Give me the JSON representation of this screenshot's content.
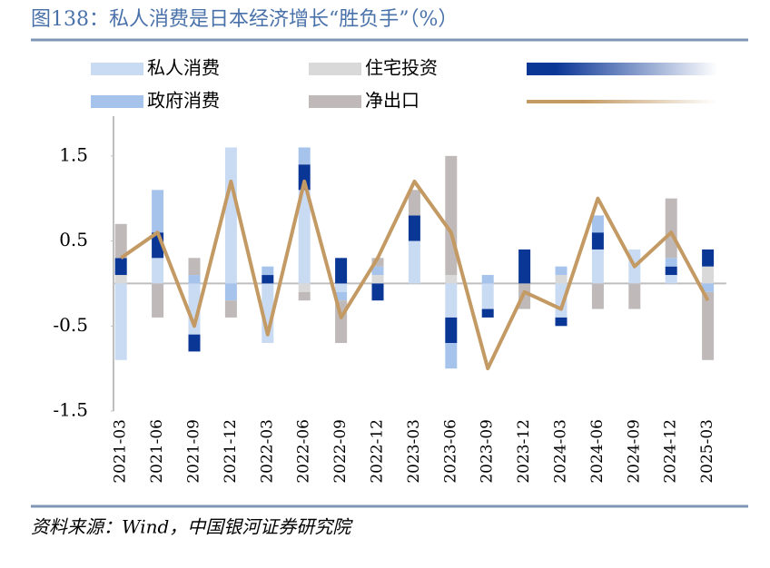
{
  "chart_data": {
    "type": "bar",
    "title": "图138：私人消费是日本经济增长“胜负手”（%）",
    "source": "资料来源：Wind，中国银河证券研究院",
    "categories": [
      "2021-03",
      "2021-06",
      "2021-09",
      "2021-12",
      "2022-03",
      "2022-06",
      "2022-09",
      "2022-12",
      "2023-03",
      "2023-06",
      "2023-09",
      "2023-12",
      "2024-03",
      "2024-06",
      "2024-09",
      "2024-12",
      "2025-03"
    ],
    "series": [
      {
        "name": "私人消费",
        "color": "#c9daf3",
        "values": [
          -0.9,
          0.3,
          -0.6,
          1.6,
          -0.7,
          1.1,
          -0.1,
          0,
          0.5,
          -0.4,
          -0.3,
          0,
          -0.4,
          0.4,
          0.4,
          0.1,
          0
        ]
      },
      {
        "name": "住宅投资",
        "color": "#d9d9d9",
        "values": [
          0.1,
          0,
          0,
          0,
          0,
          -0.1,
          0,
          0.1,
          0,
          0.1,
          0,
          0,
          0.1,
          0,
          0,
          0,
          0.2
        ]
      },
      {
        "color": "#0a3696",
        "values": [
          0.2,
          0.3,
          -0.2,
          0,
          0.1,
          0.3,
          0.3,
          -0.2,
          0.3,
          -0.3,
          -0.1,
          0.4,
          -0.1,
          0.2,
          0,
          0.1,
          0.2
        ]
      },
      {
        "name": "政府消费",
        "color": "#a6c3ec",
        "values": [
          0,
          0.5,
          0.1,
          -0.2,
          0.1,
          0.2,
          -0.1,
          0.1,
          0,
          -0.3,
          0.1,
          0,
          0.1,
          0.2,
          0,
          0.1,
          -0.1
        ]
      },
      {
        "name": "净出口",
        "color": "#bfb9b9",
        "values": [
          0.4,
          -0.4,
          0.2,
          -0.2,
          0,
          -0.1,
          -0.5,
          0.1,
          0.3,
          1.4,
          0,
          -0.3,
          0,
          -0.3,
          -0.3,
          0.7,
          -0.8
        ]
      },
      {
        "type": "line",
        "color": "#c49a64",
        "values": [
          0.3,
          0.6,
          -0.5,
          1.2,
          -0.6,
          1.2,
          -0.4,
          0.3,
          1.2,
          0.6,
          -1.0,
          -0.1,
          -0.3,
          1.0,
          0.2,
          0.6,
          -0.2
        ]
      }
    ],
    "ylim": [
      -1.5,
      2.0
    ],
    "yticks": [
      1.5,
      0.5,
      -0.5,
      -1.5
    ],
    "grid": false
  }
}
